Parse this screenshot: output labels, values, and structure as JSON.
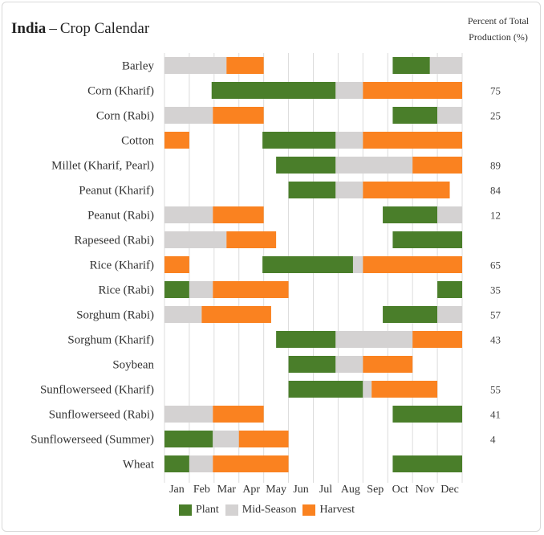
{
  "title": {
    "country": "India",
    "dash": "–",
    "rest": "Crop Calendar"
  },
  "pct_header": {
    "line1": "Percent of Total",
    "line2": "Production (%)"
  },
  "colors": {
    "plant": "#4a7e2a",
    "mid": "#d4d2d2",
    "harvest": "#fa8220",
    "grid": "#dcdcdc"
  },
  "legend": [
    {
      "key": "plant",
      "label": "Plant"
    },
    {
      "key": "mid",
      "label": "Mid-Season"
    },
    {
      "key": "harvest",
      "label": "Harvest"
    }
  ],
  "chart_data": {
    "type": "bar",
    "title": "India – Crop Calendar",
    "x_axis": {
      "labels": [
        "Jan",
        "Feb",
        "Mar",
        "Apr",
        "May",
        "Jun",
        "Jul",
        "Aug",
        "Sep",
        "Oct",
        "Nov",
        "Dec"
      ],
      "range": [
        0,
        12
      ],
      "unit": "month"
    },
    "series": [
      {
        "name": "Plant"
      },
      {
        "name": "Mid-Season"
      },
      {
        "name": "Harvest"
      }
    ],
    "grid": true,
    "legend_position": "bottom",
    "crops": [
      {
        "name": "Barley",
        "pct": "",
        "segments": [
          {
            "phase": "mid",
            "start": 0,
            "end": 2.5
          },
          {
            "phase": "harvest",
            "start": 2.5,
            "end": 4
          },
          {
            "phase": "plant",
            "start": 9.2,
            "end": 10.7
          },
          {
            "phase": "mid",
            "start": 10.7,
            "end": 12
          }
        ]
      },
      {
        "name": "Corn (Kharif)",
        "pct": "75",
        "segments": [
          {
            "phase": "plant",
            "start": 1.9,
            "end": 6.9
          },
          {
            "phase": "mid",
            "start": 6.9,
            "end": 8
          },
          {
            "phase": "harvest",
            "start": 8,
            "end": 12
          }
        ]
      },
      {
        "name": "Corn (Rabi)",
        "pct": "25",
        "segments": [
          {
            "phase": "mid",
            "start": 0,
            "end": 1.95
          },
          {
            "phase": "harvest",
            "start": 1.95,
            "end": 4
          },
          {
            "phase": "plant",
            "start": 9.2,
            "end": 11
          },
          {
            "phase": "mid",
            "start": 11,
            "end": 12
          }
        ]
      },
      {
        "name": "Cotton",
        "pct": "",
        "segments": [
          {
            "phase": "harvest",
            "start": 0,
            "end": 1
          },
          {
            "phase": "plant",
            "start": 3.95,
            "end": 6.9
          },
          {
            "phase": "mid",
            "start": 6.9,
            "end": 8
          },
          {
            "phase": "harvest",
            "start": 8,
            "end": 12
          }
        ]
      },
      {
        "name": "Millet (Kharif, Pearl)",
        "pct": "89",
        "segments": [
          {
            "phase": "plant",
            "start": 4.5,
            "end": 6.9
          },
          {
            "phase": "mid",
            "start": 6.9,
            "end": 10
          },
          {
            "phase": "harvest",
            "start": 10,
            "end": 12
          }
        ]
      },
      {
        "name": "Peanut (Kharif)",
        "pct": "84",
        "segments": [
          {
            "phase": "plant",
            "start": 5,
            "end": 6.9
          },
          {
            "phase": "mid",
            "start": 6.9,
            "end": 8
          },
          {
            "phase": "harvest",
            "start": 8,
            "end": 11.5
          }
        ]
      },
      {
        "name": "Peanut (Rabi)",
        "pct": "12",
        "segments": [
          {
            "phase": "mid",
            "start": 0,
            "end": 1.95
          },
          {
            "phase": "harvest",
            "start": 1.95,
            "end": 4
          },
          {
            "phase": "plant",
            "start": 8.8,
            "end": 11
          },
          {
            "phase": "mid",
            "start": 11,
            "end": 12
          }
        ]
      },
      {
        "name": "Rapeseed (Rabi)",
        "pct": "",
        "segments": [
          {
            "phase": "mid",
            "start": 0,
            "end": 2.5
          },
          {
            "phase": "harvest",
            "start": 2.5,
            "end": 4.5
          },
          {
            "phase": "plant",
            "start": 9.2,
            "end": 12
          }
        ]
      },
      {
        "name": "Rice (Kharif)",
        "pct": "65",
        "segments": [
          {
            "phase": "harvest",
            "start": 0,
            "end": 1
          },
          {
            "phase": "plant",
            "start": 3.95,
            "end": 7.6
          },
          {
            "phase": "mid",
            "start": 7.6,
            "end": 8
          },
          {
            "phase": "harvest",
            "start": 8,
            "end": 12
          }
        ]
      },
      {
        "name": "Rice (Rabi)",
        "pct": "35",
        "segments": [
          {
            "phase": "plant",
            "start": 0,
            "end": 1
          },
          {
            "phase": "mid",
            "start": 1,
            "end": 1.95
          },
          {
            "phase": "harvest",
            "start": 1.95,
            "end": 5
          },
          {
            "phase": "plant",
            "start": 11,
            "end": 12
          }
        ]
      },
      {
        "name": "Sorghum (Rabi)",
        "pct": "57",
        "segments": [
          {
            "phase": "mid",
            "start": 0,
            "end": 1.5
          },
          {
            "phase": "harvest",
            "start": 1.5,
            "end": 4.3
          },
          {
            "phase": "plant",
            "start": 8.8,
            "end": 11
          },
          {
            "phase": "mid",
            "start": 11,
            "end": 12
          }
        ]
      },
      {
        "name": "Sorghum (Kharif)",
        "pct": "43",
        "segments": [
          {
            "phase": "plant",
            "start": 4.5,
            "end": 6.9
          },
          {
            "phase": "mid",
            "start": 6.9,
            "end": 10
          },
          {
            "phase": "harvest",
            "start": 10,
            "end": 12
          }
        ]
      },
      {
        "name": "Soybean",
        "pct": "",
        "segments": [
          {
            "phase": "plant",
            "start": 5,
            "end": 6.9
          },
          {
            "phase": "mid",
            "start": 6.9,
            "end": 8
          },
          {
            "phase": "harvest",
            "start": 8,
            "end": 10
          }
        ]
      },
      {
        "name": "Sunflowerseed (Kharif)",
        "pct": "55",
        "segments": [
          {
            "phase": "plant",
            "start": 5,
            "end": 8
          },
          {
            "phase": "mid",
            "start": 8,
            "end": 8.35
          },
          {
            "phase": "harvest",
            "start": 8.35,
            "end": 11
          }
        ]
      },
      {
        "name": "Sunflowerseed (Rabi)",
        "pct": "41",
        "segments": [
          {
            "phase": "mid",
            "start": 0,
            "end": 1.95
          },
          {
            "phase": "harvest",
            "start": 1.95,
            "end": 4
          },
          {
            "phase": "plant",
            "start": 9.2,
            "end": 12
          }
        ]
      },
      {
        "name": "Sunflowerseed (Summer)",
        "pct": "4",
        "segments": [
          {
            "phase": "plant",
            "start": 0,
            "end": 1.95
          },
          {
            "phase": "mid",
            "start": 1.95,
            "end": 3
          },
          {
            "phase": "harvest",
            "start": 3,
            "end": 5
          }
        ]
      },
      {
        "name": "Wheat",
        "pct": "",
        "segments": [
          {
            "phase": "plant",
            "start": 0,
            "end": 1
          },
          {
            "phase": "mid",
            "start": 1,
            "end": 1.95
          },
          {
            "phase": "harvest",
            "start": 1.95,
            "end": 5
          },
          {
            "phase": "plant",
            "start": 9.2,
            "end": 12
          }
        ]
      }
    ]
  }
}
